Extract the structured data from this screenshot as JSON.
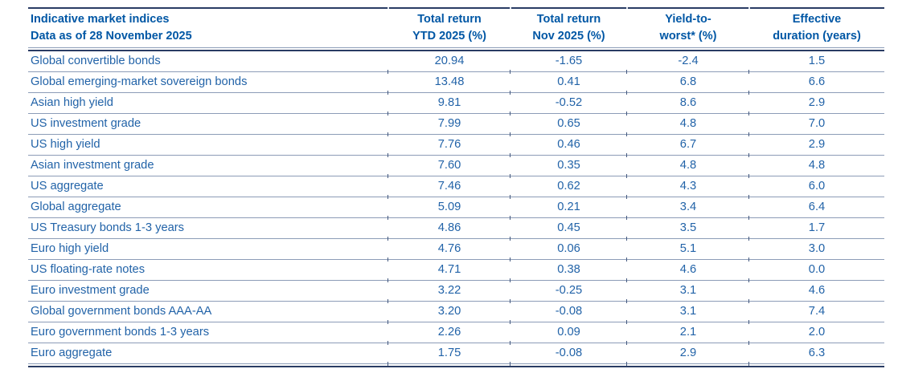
{
  "colors": {
    "background": "#FFFFFF",
    "header_text": "#0057A5",
    "body_text": "#2263A8",
    "rule_dark": "#2A3C64",
    "rule_light": "#8C9CB7",
    "tick": "#44597F"
  },
  "table": {
    "title_line1": "Indicative market indices",
    "title_line2": "Data as of 28 November 2025",
    "columns": [
      {
        "line1": "Total return",
        "line2": "YTD 2025 (%)"
      },
      {
        "line1": "Total return",
        "line2": "Nov 2025 (%)"
      },
      {
        "line1": "Yield-to-",
        "line2": "worst* (%)"
      },
      {
        "line1": "Effective",
        "line2": "duration (years)"
      }
    ],
    "rows": [
      {
        "label": "Global convertible bonds",
        "values": [
          "20.94",
          "-1.65",
          "-2.4",
          "1.5"
        ]
      },
      {
        "label": "Global emerging-market sovereign bonds",
        "values": [
          "13.48",
          "0.41",
          "6.8",
          "6.6"
        ]
      },
      {
        "label": "Asian high yield",
        "values": [
          "9.81",
          "-0.52",
          "8.6",
          "2.9"
        ]
      },
      {
        "label": "US investment grade",
        "values": [
          "7.99",
          "0.65",
          "4.8",
          "7.0"
        ]
      },
      {
        "label": "US high yield",
        "values": [
          "7.76",
          "0.46",
          "6.7",
          "2.9"
        ]
      },
      {
        "label": "Asian investment grade",
        "values": [
          "7.60",
          "0.35",
          "4.8",
          "4.8"
        ]
      },
      {
        "label": "US aggregate",
        "values": [
          "7.46",
          "0.62",
          "4.3",
          "6.0"
        ]
      },
      {
        "label": "Global aggregate",
        "values": [
          "5.09",
          "0.21",
          "3.4",
          "6.4"
        ]
      },
      {
        "label": "US Treasury bonds 1-3 years",
        "values": [
          "4.86",
          "0.45",
          "3.5",
          "1.7"
        ]
      },
      {
        "label": "Euro high yield",
        "values": [
          "4.76",
          "0.06",
          "5.1",
          "3.0"
        ]
      },
      {
        "label": "US floating-rate notes",
        "values": [
          "4.71",
          "0.38",
          "4.6",
          "0.0"
        ]
      },
      {
        "label": "Euro investment grade",
        "values": [
          "3.22",
          "-0.25",
          "3.1",
          "4.6"
        ]
      },
      {
        "label": "Global government bonds AAA-AA",
        "values": [
          "3.20",
          "-0.08",
          "3.1",
          "7.4"
        ]
      },
      {
        "label": "Euro government bonds 1-3 years",
        "values": [
          "2.26",
          "0.09",
          "2.1",
          "2.0"
        ]
      },
      {
        "label": "Euro aggregate",
        "values": [
          "1.75",
          "-0.08",
          "2.9",
          "6.3"
        ]
      }
    ]
  }
}
